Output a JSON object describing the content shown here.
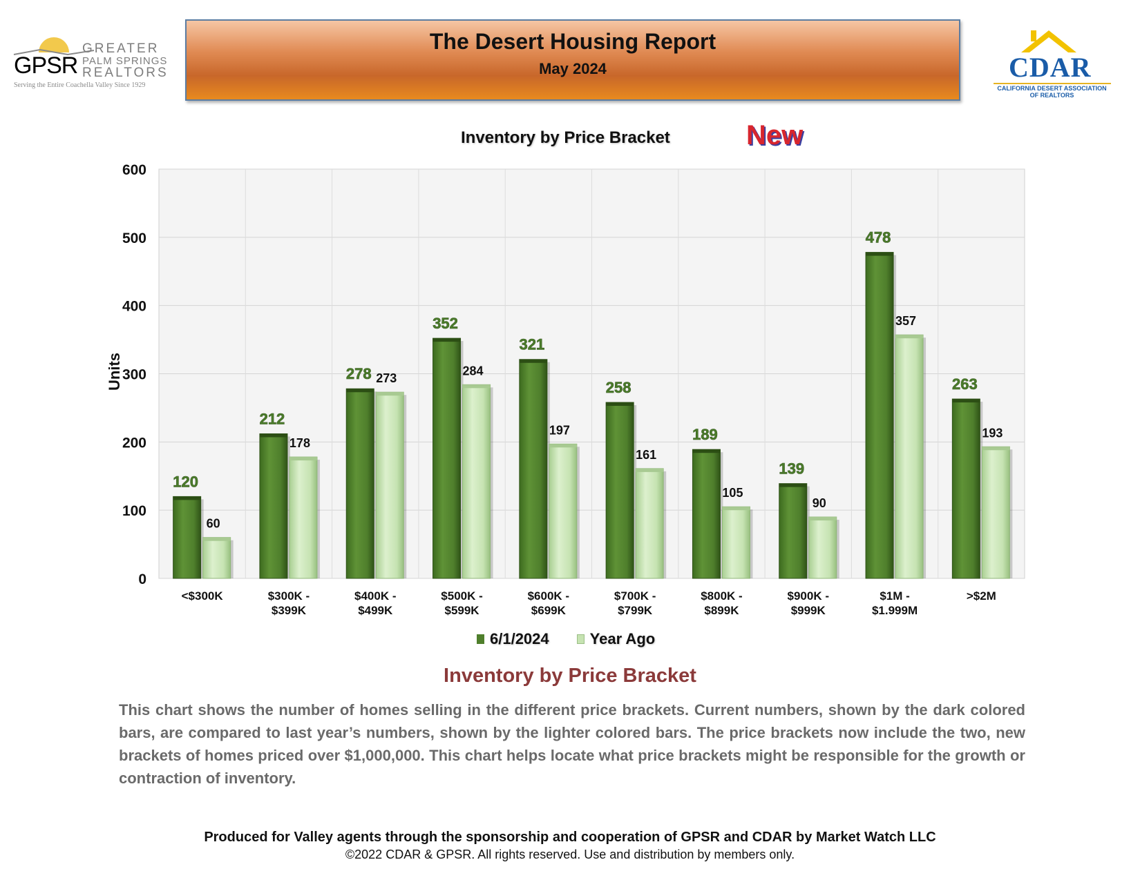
{
  "header": {
    "title": "The Desert Housing Report",
    "subtitle": "May 2024",
    "gpsr_logo": {
      "mark": "GPSR",
      "name_line1": "GREATER",
      "name_line2": "PALM SPRINGS",
      "name_line3": "REALTORS",
      "tagline": "Serving the Entire Coachella Valley Since 1929"
    },
    "cdar_logo": {
      "mark": "CDAR",
      "sub_line1": "CALIFORNIA DESERT ASSOCIATION",
      "sub_line2": "OF REALTORS"
    }
  },
  "badge": "New",
  "chart_data": {
    "type": "bar",
    "title": "Inventory by Price Bracket",
    "ylabel": "Units",
    "xlabel": "",
    "ylim": [
      0,
      600
    ],
    "yticks": [
      0,
      100,
      200,
      300,
      400,
      500,
      600
    ],
    "grid": true,
    "legend_position": "bottom",
    "categories": [
      [
        "<$300K"
      ],
      [
        "$300K -",
        "$399K"
      ],
      [
        "$400K -",
        "$499K"
      ],
      [
        "$500K -",
        "$599K"
      ],
      [
        "$600K -",
        "$699K"
      ],
      [
        "$700K -",
        "$799K"
      ],
      [
        "$800K -",
        "$899K"
      ],
      [
        "$900K -",
        "$999K"
      ],
      [
        "$1M -",
        "$1.999M"
      ],
      [
        ">$2M"
      ]
    ],
    "series": [
      {
        "name": "6/1/2024",
        "color": "#4f7f2c",
        "values": [
          120,
          212,
          278,
          352,
          321,
          258,
          189,
          139,
          478,
          263
        ]
      },
      {
        "name": "Year Ago",
        "color": "#c6e3b2",
        "values": [
          60,
          178,
          273,
          284,
          197,
          161,
          105,
          90,
          357,
          193
        ]
      }
    ]
  },
  "description": {
    "title": "Inventory by Price Bracket",
    "body": "This chart shows the number of homes selling in the different price brackets. Current numbers, shown by the dark colored bars, are compared to last year’s numbers, shown by the lighter colored bars. The price brackets now include the two, new brackets of homes priced over $1,000,000. This chart helps locate what price brackets might be responsible for the growth or contraction of inventory."
  },
  "footer": {
    "line1": "Produced for Valley agents through the sponsorship and cooperation of GPSR and CDAR by Market Watch LLC",
    "line2": "©2022 CDAR & GPSR.  All rights reserved.  Use and distribution by members only."
  }
}
